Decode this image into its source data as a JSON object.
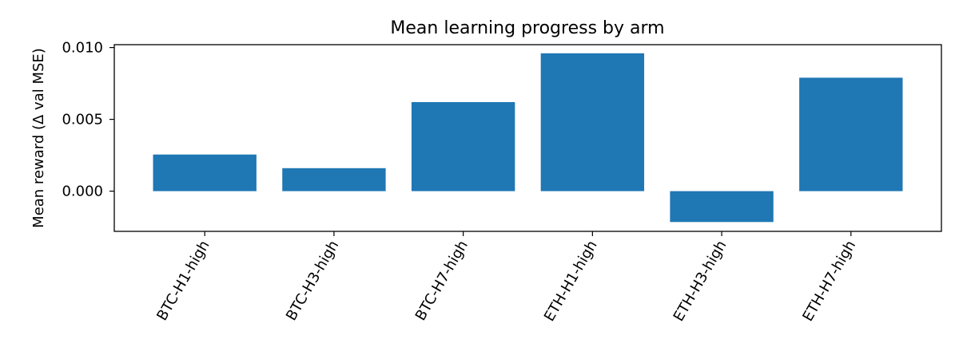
{
  "chart_data": {
    "type": "bar",
    "title": "Mean learning progress by arm",
    "xlabel": "",
    "ylabel": "Mean reward (Δ val MSE)",
    "categories": [
      "BTC-H1-high",
      "BTC-H3-high",
      "BTC-H7-high",
      "ETH-H1-high",
      "ETH-H3-high",
      "ETH-H7-high"
    ],
    "values": [
      0.00255,
      0.0016,
      0.0062,
      0.0096,
      -0.00215,
      0.0079
    ],
    "ylim": [
      -0.0028,
      0.0102
    ],
    "yticks": [
      0.0,
      0.005,
      0.01
    ],
    "ytick_labels": [
      "0.000",
      "0.005",
      "0.010"
    ],
    "bar_color": "#1f77b4",
    "grid": false,
    "legend": "none"
  }
}
